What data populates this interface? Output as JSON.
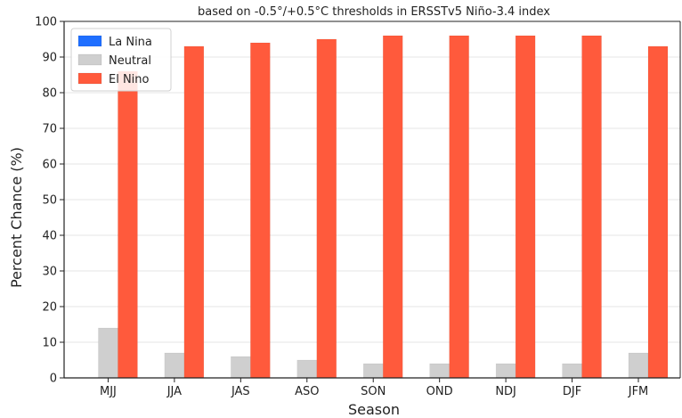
{
  "chart_data": {
    "type": "bar",
    "title": "based on -0.5°/+0.5°C thresholds in ERSSTv5 Niño-3.4 index",
    "xlabel": "Season",
    "ylabel": "Percent Chance (%)",
    "ylim": [
      0,
      100
    ],
    "yticks": [
      0,
      10,
      20,
      30,
      40,
      50,
      60,
      70,
      80,
      90,
      100
    ],
    "categories": [
      "MJJ",
      "JJA",
      "JAS",
      "ASO",
      "SON",
      "OND",
      "NDJ",
      "DJF",
      "JFM"
    ],
    "series": [
      {
        "name": "La Nina",
        "color": "#1f6fff",
        "values": [
          0,
          0,
          0,
          0,
          0,
          0,
          0,
          0,
          0
        ]
      },
      {
        "name": "Neutral",
        "color": "#cfcfcf",
        "values": [
          14,
          7,
          6,
          5,
          4,
          4,
          4,
          4,
          7
        ]
      },
      {
        "name": "El Nino",
        "color": "#ff5a3c",
        "values": [
          86,
          93,
          94,
          95,
          96,
          96,
          96,
          96,
          93
        ]
      }
    ],
    "grid": "horizontal",
    "legend_position": "top-left"
  }
}
